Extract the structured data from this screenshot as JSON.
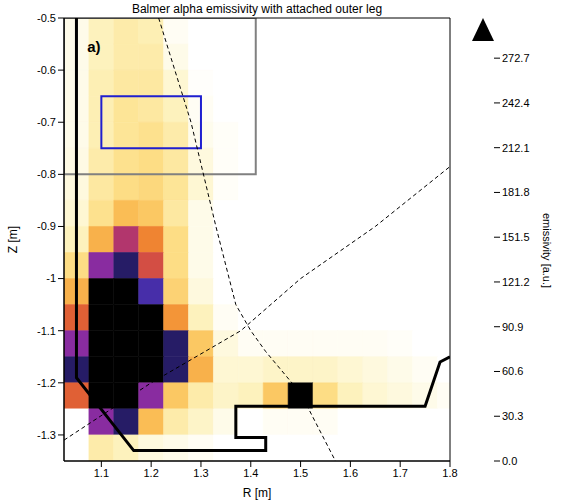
{
  "chart_data": {
    "type": "heatmap",
    "title": "Balmer alpha emissivity with attached outer leg",
    "x_label": "R [m]",
    "y_label": "Z [m]",
    "xlim": [
      1.025,
      1.8
    ],
    "xticks": [
      1.1,
      1.2,
      1.3,
      1.4,
      1.5,
      1.6,
      1.7,
      1.8
    ],
    "ylim": [
      -1.35,
      -0.5
    ],
    "yticks": [
      -1.3,
      -1.2,
      -1.1,
      -1.0,
      -0.9,
      -0.8,
      -0.7,
      -0.6,
      -0.5
    ],
    "grid": false,
    "annotations": [
      {
        "text": "a)",
        "x": 1.085,
        "y": -0.555
      }
    ],
    "R_edges": [
      1.025,
      1.075,
      1.125,
      1.175,
      1.225,
      1.275,
      1.325,
      1.375,
      1.425,
      1.475,
      1.525,
      1.575,
      1.625,
      1.675,
      1.725,
      1.775,
      1.825
    ],
    "Z_edges": [
      -0.5,
      -0.55,
      -0.6,
      -0.65,
      -0.7,
      -0.75,
      -0.8,
      -0.85,
      -0.9,
      -0.95,
      -1.0,
      -1.05,
      -1.1,
      -1.15,
      -1.2,
      -1.25,
      -1.3,
      -1.35
    ],
    "cells": [
      [
        10,
        30,
        40,
        35,
        5,
        0,
        0,
        0,
        0,
        0,
        0,
        0,
        0,
        0,
        0,
        0
      ],
      [
        10,
        30,
        40,
        40,
        10,
        0,
        0,
        0,
        0,
        0,
        0,
        0,
        0,
        0,
        0,
        0
      ],
      [
        10,
        35,
        45,
        45,
        20,
        2,
        0,
        0,
        0,
        0,
        0,
        0,
        0,
        0,
        0,
        0
      ],
      [
        10,
        35,
        50,
        45,
        30,
        5,
        0,
        0,
        0,
        0,
        0,
        0,
        0,
        0,
        0,
        0
      ],
      [
        10,
        35,
        50,
        55,
        40,
        8,
        3,
        0,
        0,
        0,
        0,
        0,
        0,
        0,
        0,
        0
      ],
      [
        12,
        40,
        55,
        60,
        45,
        15,
        3,
        0,
        0,
        0,
        0,
        0,
        0,
        0,
        0,
        0
      ],
      [
        15,
        45,
        60,
        65,
        50,
        20,
        3,
        0,
        0,
        0,
        0,
        0,
        0,
        0,
        0,
        0
      ],
      [
        20,
        55,
        90,
        80,
        45,
        10,
        0,
        0,
        0,
        0,
        0,
        0,
        0,
        0,
        0,
        0
      ],
      [
        30,
        100,
        180,
        130,
        60,
        10,
        0,
        0,
        0,
        0,
        0,
        0,
        0,
        0,
        0,
        0
      ],
      [
        60,
        200,
        250,
        160,
        60,
        10,
        0,
        0,
        0,
        0,
        0,
        0,
        0,
        0,
        0,
        0
      ],
      [
        100,
        290,
        300,
        230,
        70,
        15,
        0,
        0,
        0,
        0,
        0,
        0,
        0,
        0,
        0,
        0
      ],
      [
        150,
        300,
        300,
        300,
        120,
        30,
        5,
        0,
        0,
        0,
        0,
        0,
        0,
        0,
        0,
        0
      ],
      [
        200,
        300,
        300,
        300,
        250,
        80,
        15,
        5,
        5,
        5,
        5,
        5,
        5,
        3,
        0,
        0
      ],
      [
        250,
        300,
        300,
        300,
        250,
        100,
        20,
        20,
        25,
        25,
        25,
        20,
        15,
        10,
        5,
        0
      ],
      [
        150,
        300,
        300,
        200,
        80,
        40,
        25,
        30,
        80,
        300,
        60,
        30,
        20,
        15,
        10,
        5
      ],
      [
        0,
        200,
        250,
        90,
        40,
        25,
        10,
        0,
        5,
        5,
        5,
        0,
        0,
        0,
        0,
        0
      ],
      [
        0,
        40,
        30,
        15,
        10,
        5,
        0,
        0,
        0,
        0,
        0,
        0,
        0,
        0,
        0,
        0
      ]
    ],
    "colorbar": {
      "label": "emissivity [a.u.]",
      "range": [
        0,
        285
      ],
      "ticks": [
        {
          "value": 0,
          "label": "0.0"
        },
        30.3,
        60.6,
        90.9,
        121.2,
        151.5,
        181.8,
        212.1,
        242.4,
        272.7
      ]
    },
    "boxes": [
      {
        "color": "#808080",
        "R": [
          1.025,
          1.41
        ],
        "Z": [
          -0.8,
          -0.5
        ]
      },
      {
        "color": "#1f1fd0",
        "R": [
          1.1,
          1.3
        ],
        "Z": [
          -0.75,
          -0.65
        ]
      }
    ],
    "lines": [
      {
        "color": "#000000",
        "line_style": "solid",
        "R": [
          1.05,
          1.05,
          1.165,
          1.43,
          1.43,
          1.37,
          1.37,
          1.75,
          1.78,
          1.8
        ],
        "Z": [
          -0.5,
          -1.19,
          -1.33,
          -1.33,
          -1.305,
          -1.305,
          -1.245,
          -1.245,
          -1.16,
          -1.15
        ]
      },
      {
        "color": "#000000",
        "line_style": "dashed",
        "R": [
          1.215,
          1.28,
          1.33,
          1.37,
          1.4,
          1.43,
          1.5,
          1.57
        ],
        "Z": [
          -0.5,
          -0.7,
          -0.9,
          -1.05,
          -1.1,
          -1.14,
          -1.22,
          -1.35
        ]
      },
      {
        "color": "#000000",
        "line_style": "dashed",
        "R": [
          1.025,
          1.2,
          1.38,
          1.5,
          1.65,
          1.8
        ],
        "Z": [
          -1.31,
          -1.2,
          -1.1,
          -1.0,
          -0.9,
          -0.785
        ]
      }
    ]
  }
}
